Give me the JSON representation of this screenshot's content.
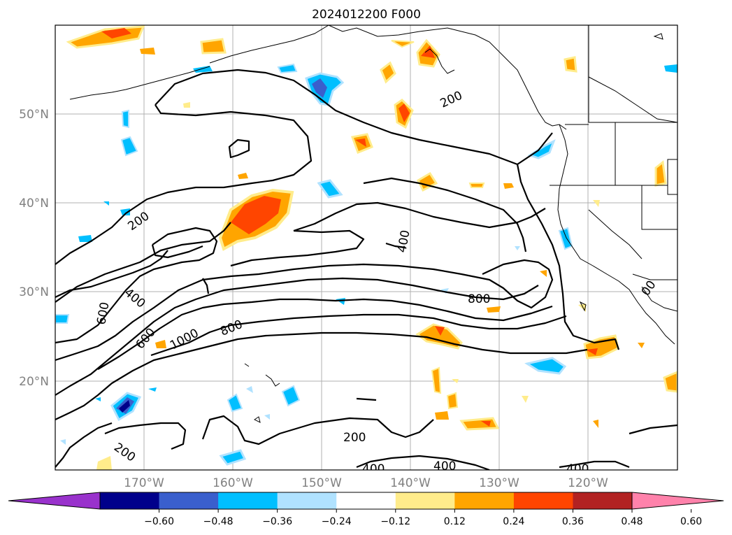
{
  "title": "2024012200 F000",
  "lat_labels": [
    "50°N",
    "40°N",
    "30°N",
    "20°N"
  ],
  "lon_labels": [
    "170°W",
    "160°W",
    "150°W",
    "140°W",
    "130°W",
    "120°W"
  ],
  "contour_labels": [
    "200",
    "200",
    "400",
    "400",
    "600",
    "600",
    "1000",
    "800",
    "800",
    "200",
    "200",
    "400",
    "400",
    "400",
    "00"
  ],
  "colorbar": {
    "ticks": [
      "−0.60",
      "−0.48",
      "−0.36",
      "−0.24",
      "−0.12",
      "0.12",
      "0.24",
      "0.36",
      "0.48",
      "0.60"
    ],
    "colors": [
      "#9932cc",
      "#00008b",
      "#3a5fcd",
      "#00bfff",
      "#b0e2ff",
      "#ffffff",
      "#ffec8b",
      "#ffa500",
      "#ff4500",
      "#b22222",
      "#ff82ab"
    ]
  }
}
